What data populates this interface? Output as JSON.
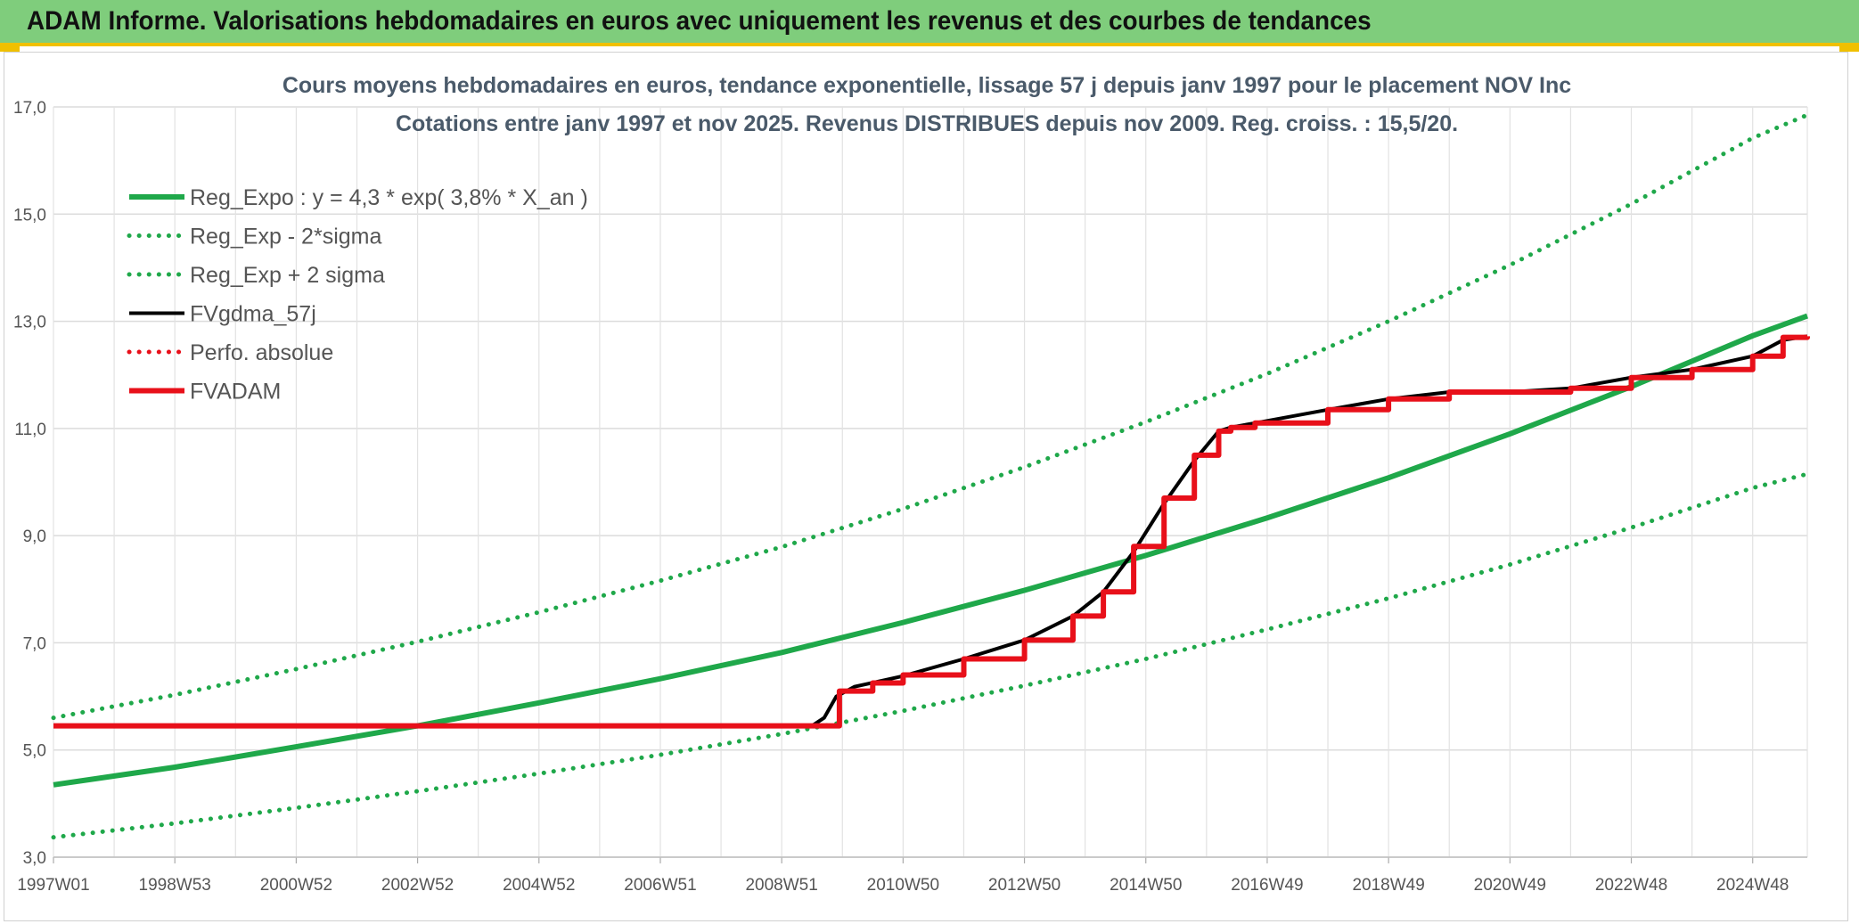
{
  "banner": {
    "title": "ADAM Informe. Valorisations hebdomadaires en euros avec uniquement les revenus et des courbes de tendances"
  },
  "chart_data": {
    "type": "line",
    "title_line1": "Cours moyens hebdomadaires en euros, tendance exponentielle, lissage 57 j depuis janv 1997 pour le placement NOV Inc",
    "title_line2": "Cotations entre janv 1997 et nov 2025. Revenus DISTRIBUES depuis nov 2009. Reg. croiss. : 15,5/20.",
    "xlabel": "",
    "ylabel": "",
    "ylim": [
      3,
      17
    ],
    "xlim": [
      1997.0,
      2025.9
    ],
    "grid": true,
    "legend_position": "top-left",
    "y_ticks": [
      "3,0",
      "5,0",
      "7,0",
      "9,0",
      "11,0",
      "13,0",
      "15,0",
      "17,0"
    ],
    "y_tick_values": [
      3,
      5,
      7,
      9,
      11,
      13,
      15,
      17
    ],
    "x_ticks": [
      "1997W01",
      "1998W53",
      "2000W52",
      "2002W52",
      "2004W52",
      "2006W51",
      "2008W51",
      "2010W50",
      "2012W50",
      "2014W50",
      "2016W49",
      "2018W49",
      "2020W49",
      "2022W48",
      "2024W48"
    ],
    "x_tick_values": [
      1997.0,
      1999.0,
      2001.0,
      2003.0,
      2005.0,
      2007.0,
      2009.0,
      2011.0,
      2013.0,
      2015.0,
      2017.0,
      2019.0,
      2021.0,
      2023.0,
      2025.0
    ],
    "series": [
      {
        "name": "Reg_Expo : y = 4,3 * exp( 3,8% *  X_an )",
        "color": "#1fa84a",
        "style": "solid",
        "x": [
          1997.0,
          1999.0,
          2001.0,
          2003.0,
          2005.0,
          2007.0,
          2009.0,
          2011.0,
          2013.0,
          2015.0,
          2017.0,
          2019.0,
          2021.0,
          2023.0,
          2025.0,
          2025.9
        ],
        "y": [
          4.35,
          4.68,
          5.06,
          5.45,
          5.88,
          6.33,
          6.82,
          7.38,
          7.98,
          8.63,
          9.33,
          10.08,
          10.9,
          11.78,
          12.73,
          13.1
        ]
      },
      {
        "name": "Reg_Exp - 2*sigma",
        "color": "#1fa84a",
        "style": "dotted",
        "x": [
          1997.0,
          1999.0,
          2001.0,
          2003.0,
          2005.0,
          2007.0,
          2009.0,
          2011.0,
          2013.0,
          2015.0,
          2017.0,
          2019.0,
          2021.0,
          2023.0,
          2025.0,
          2025.9
        ],
        "y": [
          3.37,
          3.63,
          3.92,
          4.23,
          4.56,
          4.91,
          5.3,
          5.73,
          6.2,
          6.7,
          7.25,
          7.83,
          8.46,
          9.15,
          9.89,
          10.15
        ]
      },
      {
        "name": "Reg_Exp + 2 sigma",
        "color": "#1fa84a",
        "style": "dotted",
        "x": [
          1997.0,
          1999.0,
          2001.0,
          2003.0,
          2005.0,
          2007.0,
          2009.0,
          2011.0,
          2013.0,
          2015.0,
          2017.0,
          2019.0,
          2021.0,
          2023.0,
          2025.0,
          2025.9
        ],
        "y": [
          5.6,
          6.03,
          6.51,
          7.02,
          7.57,
          8.16,
          8.79,
          9.5,
          10.28,
          11.12,
          12.02,
          13.0,
          14.05,
          15.19,
          16.42,
          16.85
        ]
      },
      {
        "name": "FVgdma_57j",
        "color": "#000000",
        "style": "solid",
        "x": [
          1997.0,
          2009.5,
          2009.7,
          2009.9,
          2010.2,
          2011.0,
          2012.0,
          2013.0,
          2013.8,
          2014.3,
          2014.8,
          2015.3,
          2015.8,
          2016.2,
          2016.4,
          2016.8,
          2018.0,
          2019.0,
          2020.0,
          2021.0,
          2022.0,
          2023.0,
          2024.0,
          2025.0,
          2025.5,
          2025.9
        ],
        "y": [
          5.45,
          5.45,
          5.6,
          6.0,
          6.18,
          6.38,
          6.7,
          7.05,
          7.5,
          7.95,
          8.7,
          9.6,
          10.4,
          10.95,
          11.02,
          11.1,
          11.35,
          11.55,
          11.68,
          11.68,
          11.75,
          11.95,
          12.1,
          12.35,
          12.65,
          12.72
        ]
      },
      {
        "name": "Perfo. absolue",
        "color": "#e8101a",
        "style": "dotted",
        "x": [],
        "y": []
      },
      {
        "name": "FVADAM",
        "color": "#e8101a",
        "style": "solid",
        "x": [
          1997.0,
          2009.95,
          2009.95,
          2010.5,
          2011.0,
          2012.0,
          2013.0,
          2013.8,
          2014.3,
          2014.8,
          2015.3,
          2015.8,
          2016.2,
          2016.4,
          2016.8,
          2018.0,
          2019.0,
          2020.0,
          2021.0,
          2022.0,
          2023.0,
          2024.0,
          2025.0,
          2025.5,
          2025.9
        ],
        "y": [
          5.45,
          5.45,
          6.1,
          6.25,
          6.4,
          6.7,
          7.05,
          7.5,
          7.95,
          8.8,
          9.7,
          10.5,
          10.95,
          11.02,
          11.1,
          11.35,
          11.55,
          11.68,
          11.68,
          11.75,
          11.95,
          12.1,
          12.35,
          12.7,
          12.72
        ]
      }
    ]
  }
}
